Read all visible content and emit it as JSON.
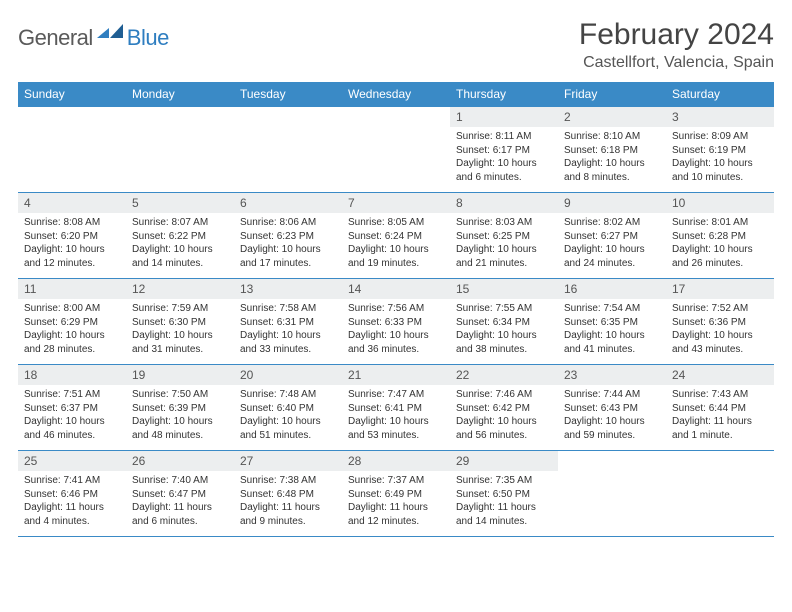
{
  "brand": {
    "general": "General",
    "blue": "Blue"
  },
  "title": "February 2024",
  "location": "Castellfort, Valencia, Spain",
  "colors": {
    "header_bg": "#3a8ac6",
    "header_text": "#ffffff",
    "rule": "#3a8ac6",
    "daynum_bg": "#eceeef",
    "body_text": "#333333",
    "brand_grey": "#5a5a5a",
    "brand_blue": "#2f7ec0"
  },
  "weekdays": [
    "Sunday",
    "Monday",
    "Tuesday",
    "Wednesday",
    "Thursday",
    "Friday",
    "Saturday"
  ],
  "leading_blanks": 4,
  "days": [
    {
      "n": 1,
      "sunrise": "8:11 AM",
      "sunset": "6:17 PM",
      "daylight": "10 hours and 6 minutes."
    },
    {
      "n": 2,
      "sunrise": "8:10 AM",
      "sunset": "6:18 PM",
      "daylight": "10 hours and 8 minutes."
    },
    {
      "n": 3,
      "sunrise": "8:09 AM",
      "sunset": "6:19 PM",
      "daylight": "10 hours and 10 minutes."
    },
    {
      "n": 4,
      "sunrise": "8:08 AM",
      "sunset": "6:20 PM",
      "daylight": "10 hours and 12 minutes."
    },
    {
      "n": 5,
      "sunrise": "8:07 AM",
      "sunset": "6:22 PM",
      "daylight": "10 hours and 14 minutes."
    },
    {
      "n": 6,
      "sunrise": "8:06 AM",
      "sunset": "6:23 PM",
      "daylight": "10 hours and 17 minutes."
    },
    {
      "n": 7,
      "sunrise": "8:05 AM",
      "sunset": "6:24 PM",
      "daylight": "10 hours and 19 minutes."
    },
    {
      "n": 8,
      "sunrise": "8:03 AM",
      "sunset": "6:25 PM",
      "daylight": "10 hours and 21 minutes."
    },
    {
      "n": 9,
      "sunrise": "8:02 AM",
      "sunset": "6:27 PM",
      "daylight": "10 hours and 24 minutes."
    },
    {
      "n": 10,
      "sunrise": "8:01 AM",
      "sunset": "6:28 PM",
      "daylight": "10 hours and 26 minutes."
    },
    {
      "n": 11,
      "sunrise": "8:00 AM",
      "sunset": "6:29 PM",
      "daylight": "10 hours and 28 minutes."
    },
    {
      "n": 12,
      "sunrise": "7:59 AM",
      "sunset": "6:30 PM",
      "daylight": "10 hours and 31 minutes."
    },
    {
      "n": 13,
      "sunrise": "7:58 AM",
      "sunset": "6:31 PM",
      "daylight": "10 hours and 33 minutes."
    },
    {
      "n": 14,
      "sunrise": "7:56 AM",
      "sunset": "6:33 PM",
      "daylight": "10 hours and 36 minutes."
    },
    {
      "n": 15,
      "sunrise": "7:55 AM",
      "sunset": "6:34 PM",
      "daylight": "10 hours and 38 minutes."
    },
    {
      "n": 16,
      "sunrise": "7:54 AM",
      "sunset": "6:35 PM",
      "daylight": "10 hours and 41 minutes."
    },
    {
      "n": 17,
      "sunrise": "7:52 AM",
      "sunset": "6:36 PM",
      "daylight": "10 hours and 43 minutes."
    },
    {
      "n": 18,
      "sunrise": "7:51 AM",
      "sunset": "6:37 PM",
      "daylight": "10 hours and 46 minutes."
    },
    {
      "n": 19,
      "sunrise": "7:50 AM",
      "sunset": "6:39 PM",
      "daylight": "10 hours and 48 minutes."
    },
    {
      "n": 20,
      "sunrise": "7:48 AM",
      "sunset": "6:40 PM",
      "daylight": "10 hours and 51 minutes."
    },
    {
      "n": 21,
      "sunrise": "7:47 AM",
      "sunset": "6:41 PM",
      "daylight": "10 hours and 53 minutes."
    },
    {
      "n": 22,
      "sunrise": "7:46 AM",
      "sunset": "6:42 PM",
      "daylight": "10 hours and 56 minutes."
    },
    {
      "n": 23,
      "sunrise": "7:44 AM",
      "sunset": "6:43 PM",
      "daylight": "10 hours and 59 minutes."
    },
    {
      "n": 24,
      "sunrise": "7:43 AM",
      "sunset": "6:44 PM",
      "daylight": "11 hours and 1 minute."
    },
    {
      "n": 25,
      "sunrise": "7:41 AM",
      "sunset": "6:46 PM",
      "daylight": "11 hours and 4 minutes."
    },
    {
      "n": 26,
      "sunrise": "7:40 AM",
      "sunset": "6:47 PM",
      "daylight": "11 hours and 6 minutes."
    },
    {
      "n": 27,
      "sunrise": "7:38 AM",
      "sunset": "6:48 PM",
      "daylight": "11 hours and 9 minutes."
    },
    {
      "n": 28,
      "sunrise": "7:37 AM",
      "sunset": "6:49 PM",
      "daylight": "11 hours and 12 minutes."
    },
    {
      "n": 29,
      "sunrise": "7:35 AM",
      "sunset": "6:50 PM",
      "daylight": "11 hours and 14 minutes."
    }
  ],
  "labels": {
    "sunrise": "Sunrise:",
    "sunset": "Sunset:",
    "daylight": "Daylight:"
  }
}
